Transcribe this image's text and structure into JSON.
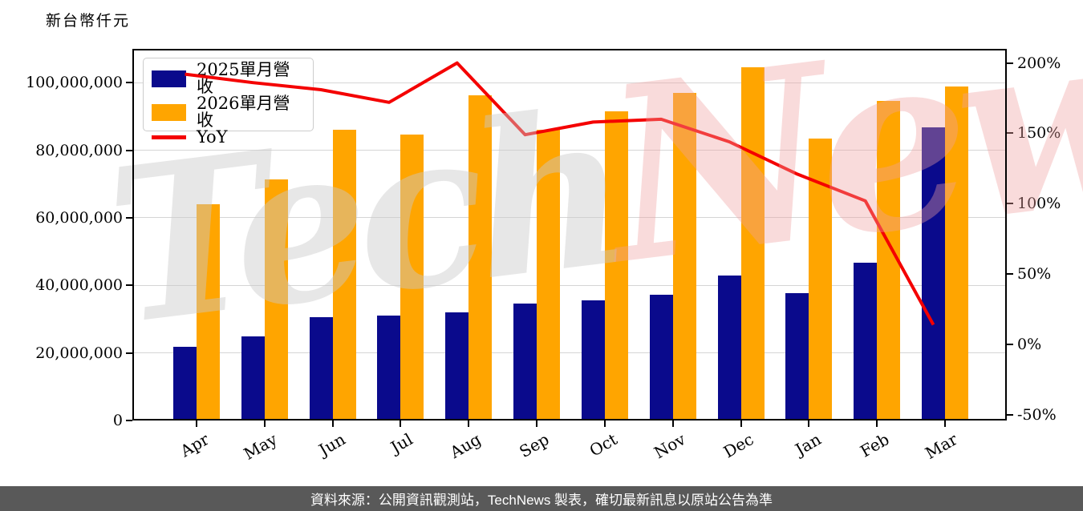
{
  "title": "新台幣仟元",
  "watermark": {
    "part1": "Tech",
    "part2": "News"
  },
  "footer": {
    "text": "資料來源：公開資訊觀測站，TechNews 製表，確切最新訊息以原站公告為準",
    "background": "#595959",
    "text_color": "#ffffff"
  },
  "colors": {
    "axis": "#000000",
    "grid": "#d5d5d5",
    "plot_background": "#ffffff",
    "watermark_gray": "rgba(201,201,201,0.45)",
    "watermark_pink": "rgba(238,160,160,0.38)"
  },
  "chart_data": {
    "type": "bar",
    "title": "新台幣仟元",
    "unit": "NTD thousands",
    "categories": [
      "Apr",
      "May",
      "Jun",
      "Jul",
      "Aug",
      "Sep",
      "Oct",
      "Nov",
      "Dec",
      "Jan",
      "Feb",
      "Mar"
    ],
    "series": [
      {
        "name": "2025單月營收",
        "type": "bar",
        "axis": "left",
        "color": "#0a0a8c",
        "values": [
          21900000,
          24900000,
          30600000,
          31100000,
          32100000,
          34500000,
          35500000,
          37300000,
          42900000,
          37700000,
          46800000,
          86700000
        ]
      },
      {
        "name": "2026單月營收",
        "type": "bar",
        "axis": "left",
        "color": "#ffa500",
        "values": [
          63900000,
          71300000,
          86000000,
          84600000,
          96200000,
          86000000,
          91500000,
          96900000,
          104600000,
          83400000,
          94700000,
          98800000
        ]
      },
      {
        "name": "YoY",
        "type": "line",
        "axis": "right",
        "unit": "%",
        "color": "#f40000",
        "values": [
          192,
          186,
          181,
          172,
          200,
          149,
          158,
          160,
          144,
          121,
          102,
          14
        ]
      }
    ],
    "left_axis": {
      "label": "新台幣仟元",
      "range": [
        0,
        110000000
      ],
      "grid": true,
      "ticks": [
        {
          "value": 0,
          "label": "0"
        },
        {
          "value": 20000000,
          "label": "20,000,000"
        },
        {
          "value": 40000000,
          "label": "40,000,000"
        },
        {
          "value": 60000000,
          "label": "60,000,000"
        },
        {
          "value": 80000000,
          "label": "80,000,000"
        },
        {
          "value": 100000000,
          "label": "100,000,000"
        }
      ]
    },
    "right_axis": {
      "range": [
        -54,
        210
      ],
      "ticks": [
        {
          "value": -50,
          "label": "-50%"
        },
        {
          "value": 0,
          "label": "0%"
        },
        {
          "value": 50,
          "label": "50%"
        },
        {
          "value": 100,
          "label": "100%"
        },
        {
          "value": 150,
          "label": "150%"
        },
        {
          "value": 200,
          "label": "200%"
        }
      ]
    },
    "legend_position": "upper-left",
    "x_label_rotation": 30
  }
}
